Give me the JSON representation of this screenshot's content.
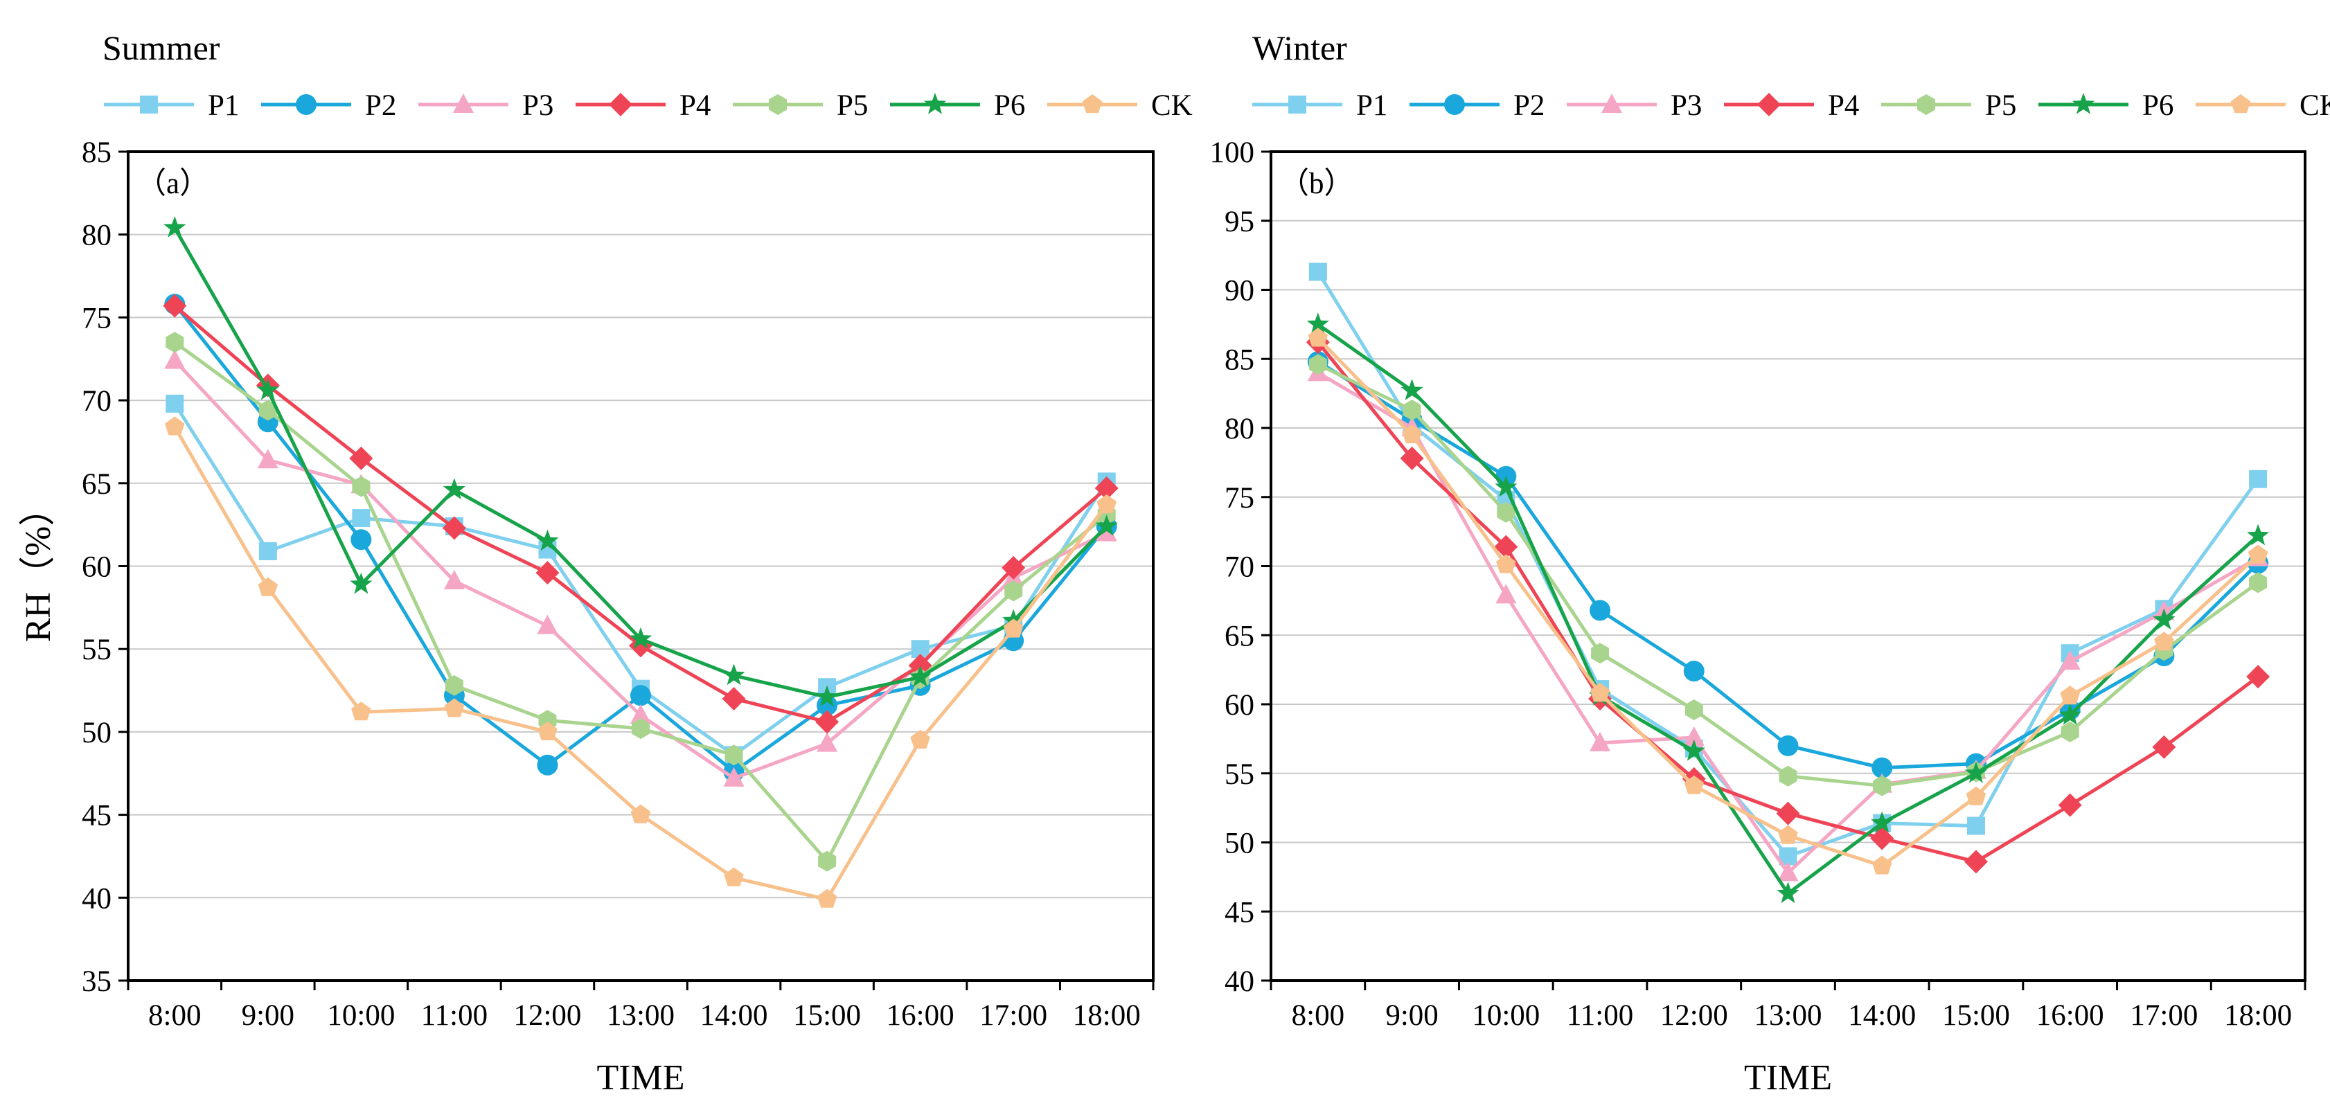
{
  "chart_data": [
    {
      "type": "line",
      "title": "Summer",
      "panel_label": "（a）",
      "xlabel": "TIME",
      "ylabel": "RH（%）",
      "ylim": [
        35,
        85
      ],
      "yticks": [
        "35",
        "40",
        "45",
        "50",
        "55",
        "60",
        "65",
        "70",
        "75",
        "80",
        "85"
      ],
      "categories": [
        "8:00",
        "9:00",
        "10:00",
        "11:00",
        "12:00",
        "13:00",
        "14:00",
        "15:00",
        "16:00",
        "17:00",
        "18:00"
      ],
      "grid": true,
      "legend_position": "top",
      "series": [
        {
          "name": "P1",
          "color": "#7fd0ee",
          "marker": "square",
          "values": [
            69.8,
            60.9,
            62.9,
            62.4,
            61.0,
            52.6,
            48.6,
            52.7,
            55.0,
            56.4,
            65.1
          ]
        },
        {
          "name": "P2",
          "color": "#1aa7dc",
          "marker": "circle",
          "values": [
            75.8,
            68.7,
            61.6,
            52.2,
            48.0,
            52.2,
            47.6,
            51.6,
            52.8,
            55.5,
            62.4
          ]
        },
        {
          "name": "P3",
          "color": "#f5a6c4",
          "marker": "triangle",
          "values": [
            72.4,
            66.4,
            64.9,
            59.1,
            56.4,
            51.0,
            47.2,
            49.3,
            54.1,
            59.3,
            62.0
          ]
        },
        {
          "name": "P4",
          "color": "#ee4455",
          "marker": "diamond",
          "values": [
            75.7,
            70.9,
            66.5,
            62.3,
            59.6,
            55.2,
            52.0,
            50.6,
            54.0,
            59.9,
            64.7
          ]
        },
        {
          "name": "P5",
          "color": "#a8d48e",
          "marker": "hexagon",
          "values": [
            73.5,
            69.4,
            64.8,
            52.8,
            50.7,
            50.2,
            48.6,
            42.2,
            53.2,
            58.5,
            63.1
          ]
        },
        {
          "name": "P6",
          "color": "#16a34a",
          "marker": "star",
          "values": [
            80.4,
            70.6,
            58.9,
            64.6,
            61.5,
            55.6,
            53.4,
            52.1,
            53.3,
            56.7,
            62.4
          ]
        },
        {
          "name": "CK",
          "color": "#f8c08a",
          "marker": "pentagon",
          "values": [
            68.4,
            58.7,
            51.2,
            51.4,
            50.0,
            45.0,
            41.2,
            39.9,
            49.5,
            56.2,
            63.7
          ]
        }
      ]
    },
    {
      "type": "line",
      "title": "Winter",
      "panel_label": "（b）",
      "xlabel": "TIME",
      "ylabel": "",
      "ylim": [
        40,
        100
      ],
      "yticks": [
        "40",
        "45",
        "50",
        "55",
        "60",
        "65",
        "70",
        "75",
        "80",
        "85",
        "90",
        "95",
        "100"
      ],
      "categories": [
        "8:00",
        "9:00",
        "10:00",
        "11:00",
        "12:00",
        "13:00",
        "14:00",
        "15:00",
        "16:00",
        "17:00",
        "18:00"
      ],
      "grid": true,
      "legend_position": "top",
      "series": [
        {
          "name": "P1",
          "color": "#7fd0ee",
          "marker": "square",
          "values": [
            91.3,
            80.2,
            74.8,
            61.1,
            56.8,
            49.0,
            51.4,
            51.2,
            63.7,
            66.9,
            76.3
          ]
        },
        {
          "name": "P2",
          "color": "#1aa7dc",
          "marker": "circle",
          "values": [
            84.8,
            80.6,
            76.5,
            66.8,
            62.4,
            57.0,
            55.4,
            55.7,
            59.6,
            63.5,
            70.2
          ]
        },
        {
          "name": "P3",
          "color": "#f5a6c4",
          "marker": "triangle",
          "values": [
            84.0,
            80.0,
            67.9,
            57.2,
            57.6,
            47.8,
            54.2,
            55.2,
            63.1,
            66.7,
            70.6
          ]
        },
        {
          "name": "P4",
          "color": "#ee4455",
          "marker": "diamond",
          "values": [
            86.2,
            77.8,
            71.4,
            60.4,
            54.6,
            52.1,
            50.3,
            48.6,
            52.7,
            56.9,
            62.0
          ]
        },
        {
          "name": "P5",
          "color": "#a8d48e",
          "marker": "hexagon",
          "values": [
            84.6,
            81.3,
            73.9,
            63.7,
            59.6,
            54.8,
            54.1,
            55.1,
            58.0,
            63.9,
            68.8
          ]
        },
        {
          "name": "P6",
          "color": "#16a34a",
          "marker": "star",
          "values": [
            87.5,
            82.7,
            75.7,
            60.6,
            56.6,
            46.3,
            51.4,
            55.0,
            59.2,
            66.1,
            72.2
          ]
        },
        {
          "name": "CK",
          "color": "#f8c08a",
          "marker": "pentagon",
          "values": [
            86.5,
            79.5,
            70.1,
            60.8,
            54.1,
            50.5,
            48.3,
            53.3,
            60.6,
            64.5,
            70.8
          ]
        }
      ]
    }
  ]
}
